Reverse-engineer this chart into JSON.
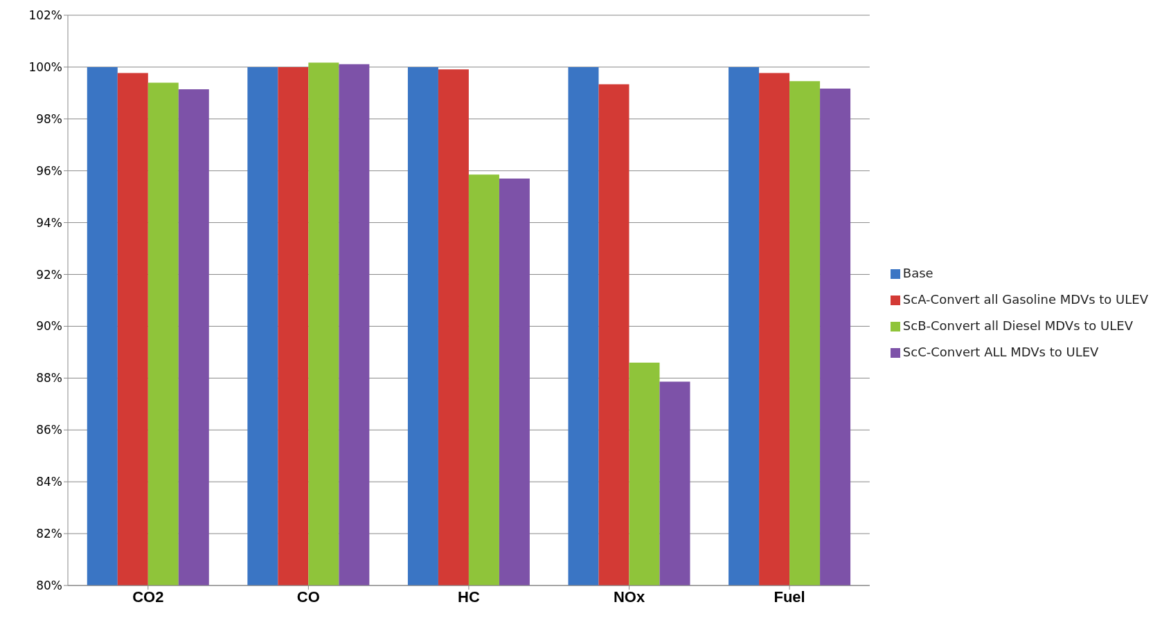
{
  "chart_data": {
    "type": "bar",
    "categories": [
      "CO2",
      "CO",
      "HC",
      "NOx",
      "Fuel"
    ],
    "series": [
      {
        "name": "Base",
        "color": "#3a75c4",
        "values": [
          100,
          100,
          100,
          100,
          100
        ]
      },
      {
        "name": "ScA-Convert all Gasoline MDVs to ULEV",
        "color": "#d33a35",
        "values": [
          99.77,
          100,
          99.91,
          99.34,
          99.77
        ]
      },
      {
        "name": "ScB-Convert all Diesel MDVs to ULEV",
        "color": "#8fc43a",
        "values": [
          99.4,
          100.17,
          95.85,
          88.6,
          99.46
        ]
      },
      {
        "name": "ScC-Convert ALL MDVs to ULEV",
        "color": "#7d52a8",
        "values": [
          99.14,
          100.11,
          95.7,
          87.86,
          99.17
        ]
      }
    ],
    "ylim": [
      80,
      102
    ],
    "yticks": [
      {
        "value": 80,
        "label": "80%"
      },
      {
        "value": 82,
        "label": "82%"
      },
      {
        "value": 84,
        "label": "84%"
      },
      {
        "value": 86,
        "label": "86%"
      },
      {
        "value": 88,
        "label": "88%"
      },
      {
        "value": 90,
        "label": "90%"
      },
      {
        "value": 92,
        "label": "92%"
      },
      {
        "value": 94,
        "label": "94%"
      },
      {
        "value": 96,
        "label": "96%"
      },
      {
        "value": 98,
        "label": "98%"
      },
      {
        "value": 100,
        "label": "100%"
      },
      {
        "value": 102,
        "label": "102%"
      }
    ],
    "grid": "y",
    "legend": "right"
  }
}
